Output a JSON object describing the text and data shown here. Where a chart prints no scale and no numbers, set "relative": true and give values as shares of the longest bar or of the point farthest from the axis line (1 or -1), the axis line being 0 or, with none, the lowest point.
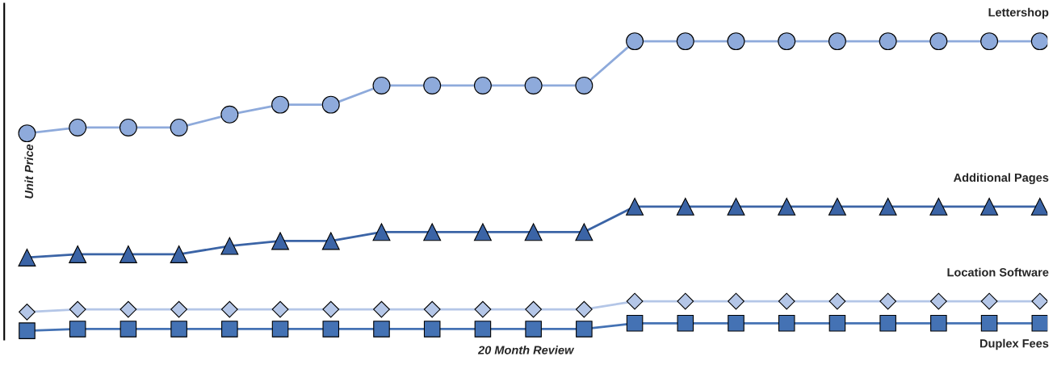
{
  "chart_data": {
    "type": "line",
    "xlabel": "20 Month Review",
    "ylabel": "Unit Price",
    "relative": true,
    "grid": false,
    "legend": false,
    "line_style": "solid",
    "categories": [
      null,
      null,
      null,
      null,
      null,
      null,
      null,
      null,
      null,
      null,
      null,
      null,
      null,
      null,
      null,
      null,
      null,
      null,
      null,
      null,
      null
    ],
    "series": [
      {
        "name": "Lettershop",
        "color": "#8eaadb",
        "marker": "circle",
        "values": [
          0.682,
          0.702,
          0.702,
          0.702,
          0.747,
          0.781,
          0.781,
          0.847,
          0.847,
          0.847,
          0.847,
          0.847,
          1,
          1,
          1,
          1,
          1,
          1,
          1,
          1,
          1
        ]
      },
      {
        "name": "Additional Pages",
        "color": "#3b64a6",
        "marker": "triangle",
        "values": [
          0.253,
          0.264,
          0.264,
          0.264,
          0.293,
          0.31,
          0.31,
          0.341,
          0.341,
          0.341,
          0.341,
          0.341,
          0.429,
          0.429,
          0.429,
          0.429,
          0.429,
          0.429,
          0.429,
          0.429,
          0.429
        ]
      },
      {
        "name": "Location Software",
        "color": "#b4c6e7",
        "marker": "diamond",
        "values": [
          0.065,
          0.074,
          0.074,
          0.074,
          0.074,
          0.074,
          0.074,
          0.074,
          0.074,
          0.074,
          0.074,
          0.074,
          0.102,
          0.102,
          0.102,
          0.102,
          0.102,
          0.102,
          0.102,
          0.102,
          0.102
        ]
      },
      {
        "name": "Duplex Fees",
        "color": "#4472b4",
        "marker": "square",
        "values": [
          0,
          0.006,
          0.006,
          0.006,
          0.006,
          0.006,
          0.006,
          0.006,
          0.006,
          0.006,
          0.006,
          0.006,
          0.026,
          0.026,
          0.026,
          0.026,
          0.026,
          0.026,
          0.026,
          0.026,
          0.026
        ]
      }
    ]
  }
}
